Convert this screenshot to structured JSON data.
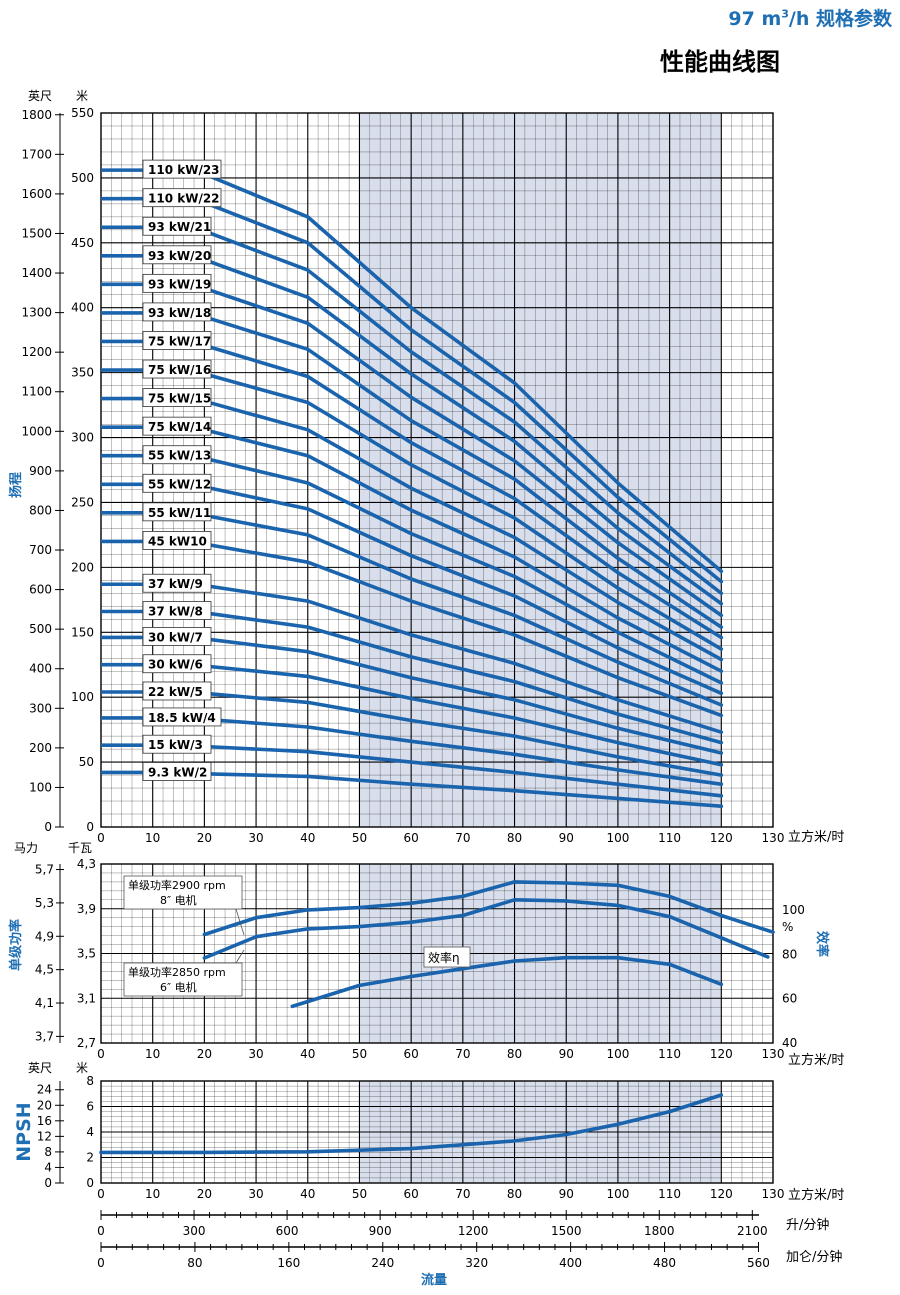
{
  "header": {
    "spec_prefix": "97 m",
    "spec_sup": "3",
    "spec_suffix": "/h 规格参数",
    "title": "性能曲线图"
  },
  "colors": {
    "curve": "#1a63ad",
    "shade": "#d8deeb",
    "accent": "#1f6fb4",
    "grid": "#000000"
  },
  "chart_data": [
    {
      "type": "line",
      "title": "",
      "xlabel": "立方米/时",
      "ylabel": "扬程",
      "units_left": [
        "英尺",
        "米"
      ],
      "xlim": [
        0,
        130
      ],
      "ylim": [
        0,
        550
      ],
      "x_ticks": [
        0,
        10,
        20,
        30,
        40,
        50,
        60,
        70,
        80,
        90,
        100,
        110,
        120,
        130
      ],
      "y_ticks_m": [
        0,
        50,
        100,
        150,
        200,
        250,
        300,
        350,
        400,
        450,
        500,
        550
      ],
      "y_ticks_ft": [
        0,
        100,
        200,
        300,
        400,
        500,
        600,
        700,
        800,
        900,
        1000,
        1100,
        1200,
        1300,
        1400,
        1500,
        1600,
        1700,
        1800
      ],
      "shaded_x_range": [
        50,
        120
      ],
      "x": [
        0,
        20,
        40,
        60,
        80,
        100,
        120
      ],
      "series": [
        {
          "name": "110 kW/23",
          "values": [
            506,
            503,
            470,
            400,
            342,
            265,
            197
          ]
        },
        {
          "name": "110 kW/22",
          "values": [
            484,
            481,
            450,
            383,
            327,
            254,
            189
          ]
        },
        {
          "name": "93 kW/21",
          "values": [
            462,
            459,
            429,
            366,
            312,
            242,
            180
          ]
        },
        {
          "name": "93 kW/20",
          "values": [
            440,
            437,
            408,
            349,
            297,
            230,
            172
          ]
        },
        {
          "name": "93 kW/19",
          "values": [
            418,
            415,
            388,
            331,
            282,
            219,
            163
          ]
        },
        {
          "name": "93 kW/18",
          "values": [
            396,
            393,
            368,
            313,
            268,
            207,
            154
          ]
        },
        {
          "name": "75 kW/17",
          "values": [
            374,
            371,
            347,
            296,
            253,
            196,
            146
          ]
        },
        {
          "name": "75 kW/16",
          "values": [
            352,
            349,
            327,
            279,
            238,
            184,
            137
          ]
        },
        {
          "name": "75 kW/15",
          "values": [
            330,
            328,
            306,
            261,
            223,
            173,
            129
          ]
        },
        {
          "name": "75 kW/14",
          "values": [
            308,
            306,
            286,
            244,
            208,
            161,
            120
          ]
        },
        {
          "name": "55 kW/13",
          "values": [
            286,
            284,
            265,
            226,
            193,
            150,
            111
          ]
        },
        {
          "name": "55 kW/12",
          "values": [
            264,
            262,
            245,
            209,
            178,
            138,
            103
          ]
        },
        {
          "name": "55 kW/11",
          "values": [
            242,
            240,
            225,
            191,
            163,
            127,
            94
          ]
        },
        {
          "name": "45 kW10",
          "values": [
            220,
            218,
            204,
            174,
            148,
            115,
            86
          ]
        },
        {
          "name": "37 kW/9",
          "values": [
            187,
            186,
            174,
            148,
            126,
            98,
            73
          ]
        },
        {
          "name": "37 kW/8",
          "values": [
            166,
            165,
            154,
            131,
            112,
            87,
            65
          ]
        },
        {
          "name": "30 kW/7",
          "values": [
            146,
            145,
            135,
            115,
            98,
            76,
            57
          ]
        },
        {
          "name": "30 kW/6",
          "values": [
            125,
            124,
            116,
            99,
            84,
            65,
            48
          ]
        },
        {
          "name": "22 kW/5",
          "values": [
            104,
            103,
            96,
            82,
            70,
            54,
            40
          ]
        },
        {
          "name": "18.5 kW/4",
          "values": [
            84,
            83,
            77,
            66,
            56,
            44,
            33
          ]
        },
        {
          "name": "15 kW/3",
          "values": [
            63,
            62,
            58,
            50,
            42,
            33,
            24
          ]
        },
        {
          "name": "9.3 kW/2",
          "values": [
            42,
            41,
            39,
            33,
            28,
            22,
            16
          ]
        }
      ]
    },
    {
      "type": "line",
      "title": "",
      "xlabel": "立方米/时",
      "ylabel_left": "单级功率",
      "ylabel_right": "效率",
      "units_left": [
        "马力",
        "千瓦"
      ],
      "right_unit": "%",
      "xlim": [
        0,
        130
      ],
      "ylim_kw": [
        2.7,
        4.3
      ],
      "y_ticks_kw": [
        "2,7",
        "3,1",
        "3,5",
        "3,9",
        "4,3"
      ],
      "y_ticks_hp": [
        "3,7",
        "4,1",
        "4,5",
        "4,9",
        "5,3",
        "5,7"
      ],
      "y_ticks_eff": [
        40,
        60,
        80,
        100
      ],
      "annotations": [
        "单级功率2900 rpm",
        "8″ 电机",
        "单级功率2850 rpm",
        "6″ 电机",
        "效率η"
      ],
      "series": [
        {
          "name": "单级功率2900 rpm 8″ 电机",
          "x": [
            20,
            30,
            40,
            50,
            60,
            70,
            80,
            90,
            100,
            110,
            120,
            130
          ],
          "values": [
            3.67,
            3.82,
            3.89,
            3.91,
            3.95,
            4.01,
            4.14,
            4.13,
            4.11,
            4.01,
            3.84,
            3.69
          ]
        },
        {
          "name": "单级功率2850 rpm 6″ 电机",
          "x": [
            20,
            30,
            40,
            50,
            60,
            70,
            80,
            90,
            100,
            110,
            120,
            129
          ],
          "values": [
            3.46,
            3.65,
            3.72,
            3.74,
            3.78,
            3.84,
            3.98,
            3.97,
            3.93,
            3.83,
            3.64,
            3.47
          ]
        },
        {
          "name": "效率η",
          "x": [
            37,
            50,
            60,
            70,
            80,
            90,
            100,
            110,
            120
          ],
          "values": [
            56.5,
            66,
            70,
            73.5,
            77,
            78.5,
            78.5,
            75.5,
            66.5
          ]
        }
      ]
    },
    {
      "type": "line",
      "title": "",
      "ylabel": "NPSH",
      "xlabel": "立方米/时",
      "units_left": [
        "英尺",
        "米"
      ],
      "xlim": [
        0,
        130
      ],
      "ylim": [
        0,
        8
      ],
      "y_ticks_m": [
        0,
        2,
        4,
        6,
        8
      ],
      "y_ticks_ft": [
        0,
        4,
        8,
        12,
        16,
        20,
        24
      ],
      "series": [
        {
          "name": "NPSH",
          "x": [
            0,
            20,
            40,
            60,
            80,
            90,
            100,
            110,
            120
          ],
          "values": [
            2.4,
            2.4,
            2.45,
            2.7,
            3.3,
            3.8,
            4.6,
            5.6,
            6.9
          ]
        }
      ]
    }
  ],
  "flow_scales": {
    "title": "流量",
    "lpm_label": "升/分钟",
    "lpm_ticks": [
      0,
      300,
      600,
      900,
      1200,
      1500,
      1800,
      2100
    ],
    "gpm_label": "加仑/分钟",
    "gpm_ticks": [
      0,
      80,
      160,
      240,
      320,
      400,
      480,
      560
    ]
  }
}
